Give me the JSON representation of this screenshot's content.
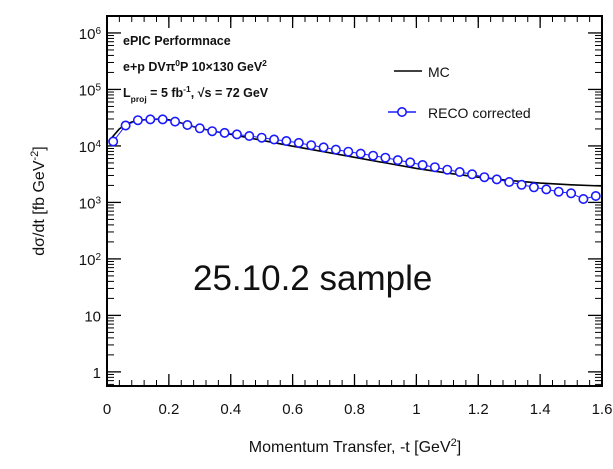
{
  "chart_data": {
    "type": "line",
    "xlabel": "Momentum Transfer, -t [GeV",
    "xlabel_sup": "2",
    "xlabel_end": "]",
    "ylabel": "dσ/dt [fb GeV",
    "ylabel_sup": "-2",
    "ylabel_end": "]",
    "xlim": [
      0,
      1.6
    ],
    "ylim_log10": [
      -0.25,
      6.3
    ],
    "y_scale": "log",
    "x_ticks": [
      {
        "v": 0,
        "label": "0"
      },
      {
        "v": 0.2,
        "label": "0.2"
      },
      {
        "v": 0.4,
        "label": "0.4"
      },
      {
        "v": 0.6,
        "label": "0.6"
      },
      {
        "v": 0.8,
        "label": "0.8"
      },
      {
        "v": 1.0,
        "label": "1"
      },
      {
        "v": 1.2,
        "label": "1.2"
      },
      {
        "v": 1.4,
        "label": "1.4"
      },
      {
        "v": 1.6,
        "label": "1.6"
      }
    ],
    "y_ticks": [
      {
        "e": 0,
        "label": "1",
        "sup": ""
      },
      {
        "e": 1,
        "label": "10",
        "sup": ""
      },
      {
        "e": 2,
        "label": "10",
        "sup": "2"
      },
      {
        "e": 3,
        "label": "10",
        "sup": "3"
      },
      {
        "e": 4,
        "label": "10",
        "sup": "4"
      },
      {
        "e": 5,
        "label": "10",
        "sup": "5"
      },
      {
        "e": 6,
        "label": "10",
        "sup": "6"
      }
    ],
    "series": [
      {
        "name": "MC",
        "style": "line",
        "color": "#000000",
        "x": [
          0.005,
          0.02,
          0.04,
          0.06,
          0.08,
          0.1,
          0.12,
          0.14,
          0.16,
          0.18,
          0.2,
          0.22,
          0.24,
          0.26,
          0.3,
          0.35,
          0.4,
          0.45,
          0.5,
          0.6,
          0.7,
          0.8,
          0.9,
          1.0,
          1.1,
          1.2,
          1.3,
          1.4,
          1.5,
          1.6
        ],
        "y": [
          12000,
          15000,
          20000,
          24000,
          26500,
          28000,
          29000,
          29500,
          29700,
          29500,
          29000,
          27500,
          25500,
          23500,
          20500,
          18000,
          16000,
          14200,
          12600,
          9900,
          7900,
          6300,
          5000,
          4000,
          3300,
          2800,
          2450,
          2200,
          2050,
          1950
        ]
      },
      {
        "name": "RECO corrected",
        "style": "markers",
        "color": "#1a1aff",
        "x": [
          0.02,
          0.06,
          0.1,
          0.14,
          0.18,
          0.22,
          0.26,
          0.3,
          0.34,
          0.38,
          0.42,
          0.46,
          0.5,
          0.54,
          0.58,
          0.62,
          0.66,
          0.7,
          0.74,
          0.78,
          0.82,
          0.86,
          0.9,
          0.94,
          0.98,
          1.02,
          1.06,
          1.1,
          1.14,
          1.18,
          1.22,
          1.26,
          1.3,
          1.34,
          1.38,
          1.42,
          1.46,
          1.5,
          1.54,
          1.58
        ],
        "y": [
          12000,
          23000,
          28500,
          29500,
          29500,
          27000,
          23500,
          20500,
          18200,
          17000,
          16000,
          15000,
          14000,
          13000,
          12200,
          11300,
          10300,
          9400,
          8600,
          7900,
          7300,
          6700,
          6200,
          5600,
          5100,
          4600,
          4200,
          3800,
          3450,
          3150,
          2800,
          2550,
          2300,
          2050,
          1850,
          1700,
          1550,
          1450,
          1150,
          1300
        ]
      }
    ],
    "annotations": {
      "line1": "ePIC Performnace",
      "line2_a": "e+p DVπ",
      "line2_sup": "0",
      "line2_b": "P 10×130 GeV",
      "line2_sup2": "2",
      "line3_a": "L",
      "line3_sub": "proj",
      "line3_b": " = 5 fb",
      "line3_sup": "-1",
      "line3_c": ", √s = 72 GeV"
    },
    "legend": {
      "placement": "top-right",
      "items": [
        "MC",
        "RECO corrected"
      ]
    },
    "overlay_text": "25.10.2 sample"
  }
}
